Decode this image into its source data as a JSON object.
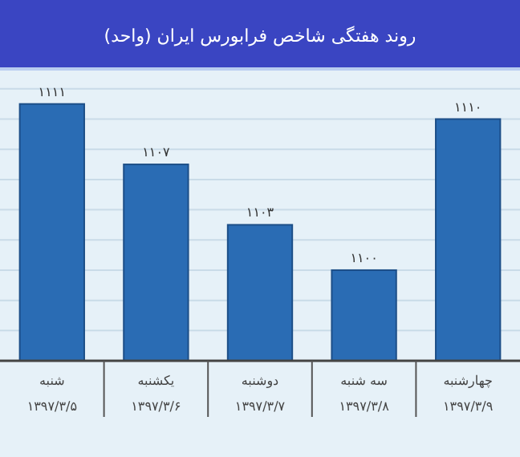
{
  "chart_data": {
    "type": "bar",
    "title": "روند هفتگی شاخص فرابورس ایران (واحد)",
    "categories": [
      "شنبه\n۱۳۹۷/۳/۵",
      "یکشنبه\n۱۳۹۷/۳/۶",
      "دوشنبه\n۱۳۹۷/۳/۷",
      "سه شنبه\n۱۳۹۷/۳/۸",
      "چهارشنبه\n۱۳۹۷/۳/۹"
    ],
    "values": [
      1111,
      1107,
      1103,
      1100,
      1110
    ],
    "value_labels": [
      "۱۱۱۱",
      "۱۱۰۷",
      "۱۱۰۳",
      "۱۱۰۰",
      "۱۱۱۰"
    ],
    "color": "#2a6cb4",
    "ylim": [
      1094,
      1113
    ],
    "yticks": [
      {
        "value": 1094,
        "label": null
      },
      {
        "value": 1096,
        "label": null
      },
      {
        "value": 1098,
        "label": null
      },
      {
        "value": 1100,
        "label": null
      },
      {
        "value": 1102,
        "label": null
      },
      {
        "value": 1104,
        "label": null
      },
      {
        "value": 1106,
        "label": null
      },
      {
        "value": 1108,
        "label": null
      },
      {
        "value": 1110,
        "label": null
      },
      {
        "value": 1112,
        "label": null
      }
    ],
    "tick_labels": "x",
    "grid": "y"
  }
}
